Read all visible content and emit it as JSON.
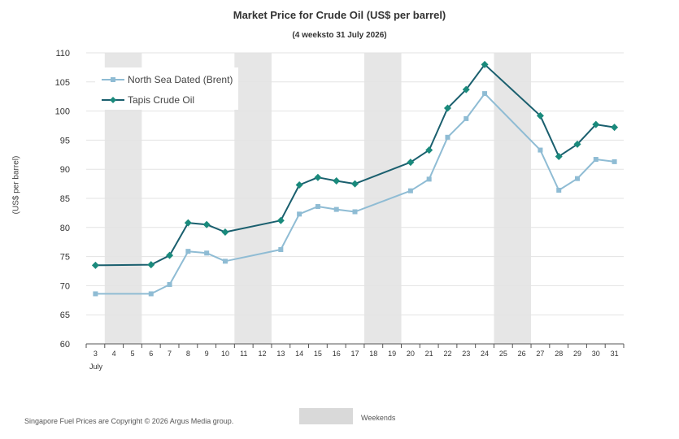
{
  "chart_data": {
    "type": "line",
    "title": "Market Price for Crude  Oil (US$ per barrel)",
    "subtitle": "(4 weeksto 31 July 2026)",
    "ylabel": "(US$ per barrel)",
    "xlabel": "",
    "month_label": "July",
    "ylim": [
      60,
      110
    ],
    "yticks": [
      60,
      65,
      70,
      75,
      80,
      85,
      90,
      95,
      100,
      105,
      110
    ],
    "categories": [
      3,
      4,
      5,
      6,
      7,
      8,
      9,
      10,
      11,
      12,
      13,
      14,
      15,
      16,
      17,
      18,
      19,
      20,
      21,
      22,
      23,
      24,
      25,
      26,
      27,
      28,
      29,
      30,
      31
    ],
    "weekends": [
      [
        4,
        5
      ],
      [
        11,
        12
      ],
      [
        18,
        19
      ],
      [
        25,
        26
      ]
    ],
    "grid": true,
    "legend_position": "top-left",
    "series": [
      {
        "name": "North Sea Dated (Brent)",
        "color": "#8fbcd4",
        "marker": "square",
        "x": [
          3,
          6,
          7,
          8,
          9,
          10,
          13,
          14,
          15,
          16,
          17,
          20,
          21,
          22,
          23,
          24,
          27,
          28,
          29,
          30,
          31
        ],
        "values": [
          68.6,
          68.6,
          70.2,
          75.9,
          75.6,
          74.2,
          76.2,
          82.3,
          83.6,
          83.1,
          82.7,
          86.3,
          88.3,
          95.5,
          98.7,
          103.0,
          93.3,
          86.4,
          88.4,
          91.7,
          91.3
        ]
      },
      {
        "name": "Tapis Crude Oil",
        "color": "#1a5f6e",
        "marker_color": "#1a8a7c",
        "marker": "diamond",
        "x": [
          3,
          6,
          7,
          8,
          9,
          10,
          13,
          14,
          15,
          16,
          17,
          20,
          21,
          22,
          23,
          24,
          27,
          28,
          29,
          30,
          31
        ],
        "values": [
          73.5,
          73.6,
          75.2,
          80.8,
          80.5,
          79.2,
          81.2,
          87.3,
          88.6,
          88.0,
          87.5,
          91.2,
          93.3,
          100.5,
          103.7,
          108.0,
          99.2,
          92.2,
          94.3,
          97.7,
          97.2
        ]
      }
    ]
  },
  "legend": {
    "brent": "North Sea Dated (Brent)",
    "tapis": "Tapis Crude Oil",
    "weekends": "Weekends"
  },
  "footer": {
    "copyright": "Singapore  Fuel Prices are  Copyright © 2026 Argus Media  group."
  }
}
